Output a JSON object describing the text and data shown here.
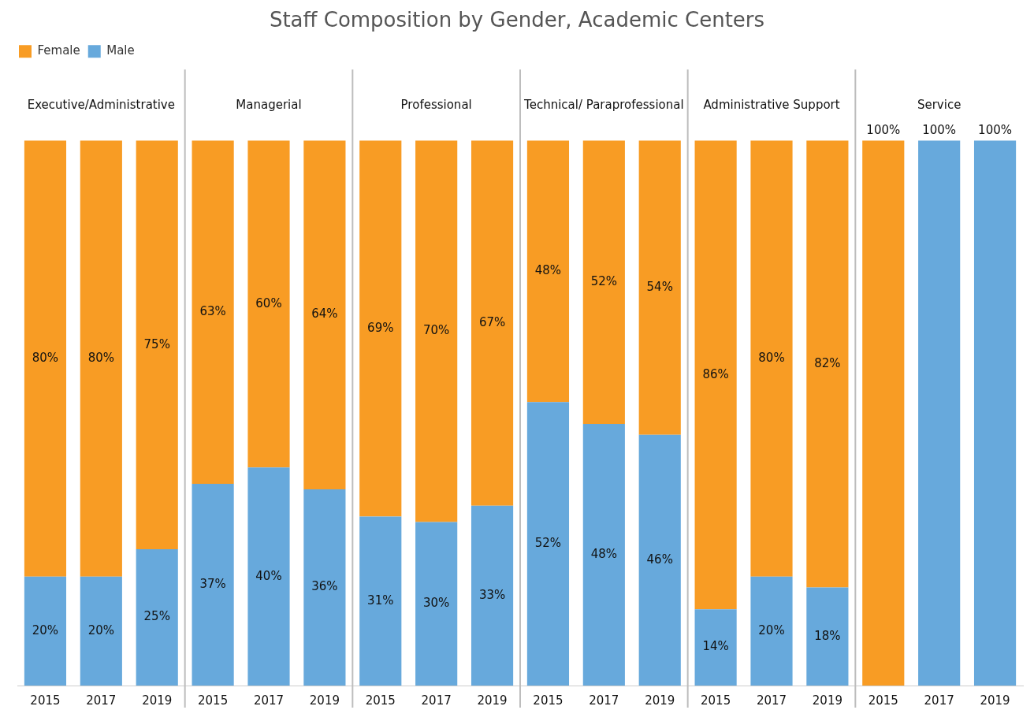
{
  "chart_data": {
    "type": "bar",
    "title": "Staff Composition by Gender, Academic Centers",
    "stacked": true,
    "legend": "top left",
    "tick_labels": "x",
    "ylim": [
      0,
      100
    ],
    "categories": [
      "2015",
      "2017",
      "2019",
      "2015",
      "2017",
      "2019",
      "2015",
      "2017",
      "2019",
      "2015",
      "2017",
      "2019",
      "2015",
      "2017",
      "2019",
      "2015",
      "2017",
      "2019"
    ],
    "annotations": [
      "Executive/Administrative",
      "Managerial",
      "Professional",
      "Technical/ Paraprofessional",
      "Administrative Support",
      "Service"
    ],
    "series": [
      {
        "name": "Male",
        "color": "#67a9dc",
        "values": [
          20,
          20,
          25,
          37,
          40,
          36,
          31,
          30,
          33,
          52,
          48,
          46,
          14,
          20,
          18,
          0,
          100,
          100
        ],
        "value_labels": [
          "20%",
          "20%",
          "25%",
          "37%",
          "40%",
          "36%",
          "31%",
          "30%",
          "33%",
          "52%",
          "48%",
          "46%",
          "14%",
          "20%",
          "18%",
          null,
          "100%",
          "100%"
        ]
      },
      {
        "name": "Female",
        "color": "#f89c24",
        "values": [
          80,
          80,
          75,
          63,
          60,
          64,
          69,
          70,
          67,
          48,
          52,
          54,
          86,
          80,
          82,
          100,
          0,
          0
        ],
        "value_labels": [
          "80%",
          "80%",
          "75%",
          "63%",
          "60%",
          "64%",
          "69%",
          "70%",
          "67%",
          "48%",
          "52%",
          "54%",
          "86%",
          "80%",
          "82%",
          "100%",
          null,
          null
        ]
      }
    ]
  }
}
